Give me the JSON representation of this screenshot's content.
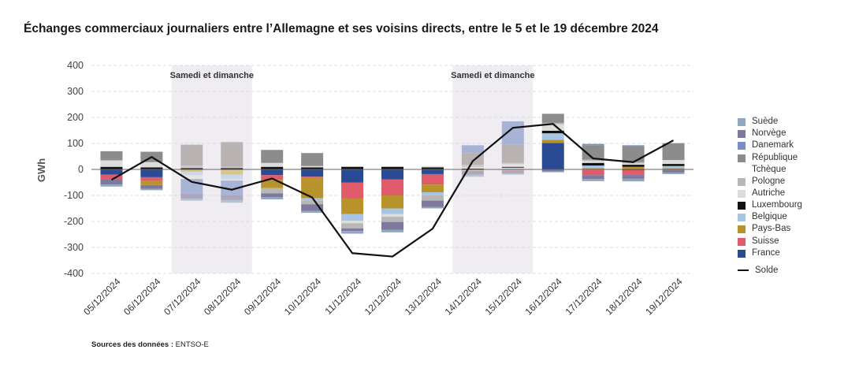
{
  "title": "Échanges commerciaux journaliers entre l’Allemagne et ses voisins directs, entre le 5 et le 19 décembre 2024",
  "source_label": "Sources des données :",
  "source_value": "ENTSO-E",
  "chart_data": {
    "type": "bar",
    "stacked": true,
    "ylabel": "GWh",
    "ylim": [
      -400,
      400
    ],
    "yticks": [
      400,
      300,
      200,
      100,
      0,
      -100,
      -200,
      -300,
      -400
    ],
    "grid": true,
    "legend_position": "right",
    "categories": [
      "05/12/2024",
      "06/12/2024",
      "07/12/2024",
      "08/12/2024",
      "09/12/2024",
      "10/12/2024",
      "11/12/2024",
      "12/12/2024",
      "13/12/2024",
      "14/12/2024",
      "15/12/2024",
      "16/12/2024",
      "17/12/2024",
      "18/12/2024",
      "19/12/2024"
    ],
    "weekend_bands": [
      {
        "from": "07/12/2024",
        "to": "08/12/2024",
        "label": "Samedi et dimanche"
      },
      {
        "from": "14/12/2024",
        "to": "15/12/2024",
        "label": "Samedi et dimanche"
      }
    ],
    "series": [
      {
        "name": "France",
        "color": "#2a4b94",
        "values": [
          -20,
          -30,
          0,
          0,
          -22,
          -28,
          -50,
          -38,
          -18,
          0,
          0,
          102,
          -2,
          -3,
          -2
        ]
      },
      {
        "name": "Suisse",
        "color": "#e05b6b",
        "values": [
          -18,
          -15,
          0,
          0,
          -18,
          -5,
          -62,
          -62,
          -40,
          0,
          -5,
          0,
          -20,
          -18,
          0
        ]
      },
      {
        "name": "Pays-Bas",
        "color": "#b8922b",
        "values": [
          0,
          -15,
          -10,
          -20,
          -32,
          -78,
          -60,
          -50,
          -30,
          -5,
          0,
          12,
          5,
          10,
          5
        ]
      },
      {
        "name": "Belgique",
        "color": "#a9c5e4",
        "values": [
          0,
          0,
          -12,
          -18,
          0,
          -8,
          -25,
          -22,
          -12,
          0,
          7,
          25,
          10,
          0,
          8
        ]
      },
      {
        "name": "Luxembourg",
        "color": "#111111",
        "values": [
          10,
          8,
          5,
          5,
          10,
          8,
          10,
          10,
          8,
          3,
          3,
          10,
          10,
          8,
          8
        ]
      },
      {
        "name": "Autriche",
        "color": "#dcdcdc",
        "values": [
          25,
          20,
          -15,
          -5,
          15,
          5,
          -10,
          -10,
          5,
          5,
          10,
          25,
          8,
          5,
          15
        ]
      },
      {
        "name": "Pologne",
        "color": "#b7b7b7",
        "values": [
          0,
          0,
          10,
          5,
          -20,
          -15,
          -20,
          -20,
          -20,
          10,
          5,
          5,
          5,
          5,
          0
        ]
      },
      {
        "name": "République Tchèque",
        "color": "#8c8c8c",
        "values": [
          35,
          40,
          80,
          95,
          50,
          50,
          0,
          0,
          0,
          45,
          70,
          35,
          55,
          60,
          65
        ]
      },
      {
        "name": "Danemark",
        "color": "#7b8fc7",
        "values": [
          0,
          0,
          -55,
          -55,
          0,
          0,
          0,
          0,
          0,
          30,
          90,
          0,
          5,
          5,
          0
        ]
      },
      {
        "name": "Norvège",
        "color": "#7f7a9d",
        "values": [
          -20,
          -15,
          -20,
          -20,
          -15,
          -25,
          -10,
          -30,
          -25,
          -15,
          -10,
          -8,
          -15,
          -15,
          -10
        ]
      },
      {
        "name": "Suède",
        "color": "#8fa8c0",
        "values": [
          -8,
          -5,
          -8,
          -10,
          -8,
          -8,
          -10,
          -10,
          -5,
          -8,
          -5,
          -3,
          -8,
          -10,
          -6
        ]
      }
    ],
    "fade_colors": {
      "#2a4b94": "#2a4b94",
      "#e05b6b": "#e8a49a",
      "#b8922b": "#d9c48a",
      "#a9c5e4": "#c9d8ea",
      "#111111": "#111111",
      "#dcdcdc": "#e7e3e3",
      "#b7b7b7": "#cfc9c9",
      "#8c8c8c": "#b9b2b2",
      "#7b8fc7": "#a7b4d6",
      "#7f7a9d": "#aca7be",
      "#8fa8c0": "#b6c4d2"
    },
    "solde": {
      "name": "Solde",
      "color": "#111111",
      "values": [
        -40,
        48,
        -48,
        -78,
        -35,
        -108,
        -322,
        -335,
        -228,
        32,
        160,
        175,
        42,
        28,
        112
      ]
    }
  },
  "legend_items": [
    {
      "name": "Suède",
      "color": "#8fa8c0"
    },
    {
      "name": "Norvège",
      "color": "#7f7a9d"
    },
    {
      "name": "Danemark",
      "color": "#7b8fc7"
    },
    {
      "name": "République Tchèque",
      "color": "#8c8c8c"
    },
    {
      "name": "Pologne",
      "color": "#b7b7b7"
    },
    {
      "name": "Autriche",
      "color": "#dcdcdc"
    },
    {
      "name": "Luxembourg",
      "color": "#111111"
    },
    {
      "name": "Belgique",
      "color": "#a9c5e4"
    },
    {
      "name": "Pays-Bas",
      "color": "#b8922b"
    },
    {
      "name": "Suisse",
      "color": "#e05b6b"
    },
    {
      "name": "France",
      "color": "#2a4b94"
    }
  ],
  "legend_line_label": "Solde"
}
